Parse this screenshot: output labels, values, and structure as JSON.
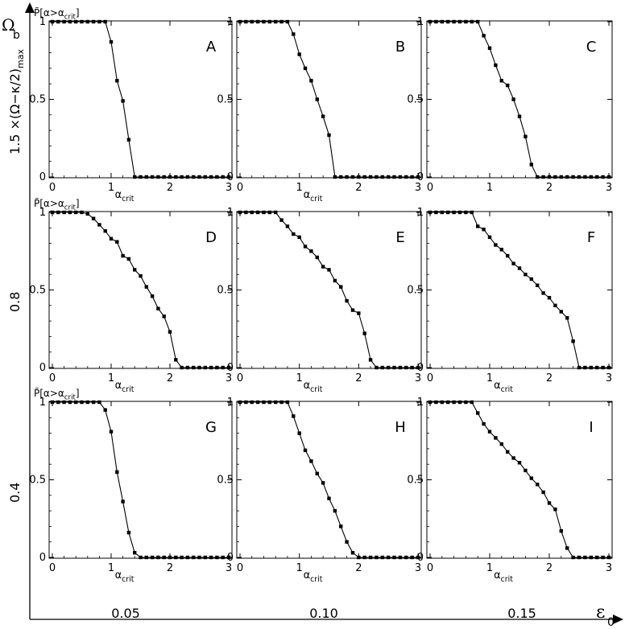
{
  "figure": {
    "y_outer_label": "Ω",
    "y_outer_sub": "b",
    "x_outer_label": "ε",
    "x_outer_sub": "0",
    "row_header": "1.5 ×(Ω−κ/2)",
    "row_header_sub": "max",
    "row_labels": [
      "1.5 ×(Ω−κ/2)max",
      "0.8",
      "0.4"
    ],
    "col_labels": [
      "0.05",
      "0.10",
      "0.15"
    ]
  },
  "chart_data": [
    {
      "type": "line",
      "panel": "A",
      "ylabel": "P̃[α>αcrit]",
      "xlabel": "αcrit",
      "xticks": [
        "0",
        "1",
        "2",
        "3"
      ],
      "yticks": [
        "0",
        "0.5",
        "1"
      ],
      "xlim": [
        0,
        3
      ],
      "ylim": [
        0,
        1
      ],
      "x": [
        0,
        0.1,
        0.2,
        0.3,
        0.4,
        0.5,
        0.6,
        0.7,
        0.8,
        0.9,
        1.0,
        1.1,
        1.2,
        1.3,
        1.4,
        1.5,
        1.6,
        1.7,
        1.8,
        1.9,
        2.0,
        2.1,
        2.2,
        2.3,
        2.4,
        2.5,
        2.6,
        2.7,
        2.8,
        2.9,
        3.0
      ],
      "y": [
        1,
        1,
        1,
        1,
        1,
        1,
        1,
        1,
        1,
        1,
        0.87,
        0.62,
        0.49,
        0.24,
        0,
        0,
        0,
        0,
        0,
        0,
        0,
        0,
        0,
        0,
        0,
        0,
        0,
        0,
        0,
        0,
        0
      ]
    },
    {
      "type": "line",
      "panel": "B",
      "ylabel": "",
      "xlabel": "αcrit",
      "xticks": [
        "0",
        "1",
        "2",
        "3"
      ],
      "yticks": [
        "0",
        "0.5",
        "1"
      ],
      "xlim": [
        0,
        3
      ],
      "ylim": [
        0,
        1
      ],
      "x": [
        0,
        0.1,
        0.2,
        0.3,
        0.4,
        0.5,
        0.6,
        0.7,
        0.8,
        0.9,
        1.0,
        1.1,
        1.2,
        1.3,
        1.4,
        1.5,
        1.6,
        1.7,
        1.8,
        1.9,
        2.0,
        2.1,
        2.2,
        2.3,
        2.4,
        2.5,
        2.6,
        2.7,
        2.8,
        2.9,
        3.0
      ],
      "y": [
        1,
        1,
        1,
        1,
        1,
        1,
        1,
        1,
        1,
        0.92,
        0.79,
        0.7,
        0.62,
        0.5,
        0.39,
        0.27,
        0,
        0,
        0,
        0,
        0,
        0,
        0,
        0,
        0,
        0,
        0,
        0,
        0,
        0,
        0
      ]
    },
    {
      "type": "line",
      "panel": "C",
      "ylabel": "",
      "xlabel": "",
      "xticks": [
        "0",
        "1",
        "2",
        "3"
      ],
      "yticks": [
        "0",
        "0.5",
        "1"
      ],
      "xlim": [
        0,
        3
      ],
      "ylim": [
        0,
        1
      ],
      "x": [
        0,
        0.1,
        0.2,
        0.3,
        0.4,
        0.5,
        0.6,
        0.7,
        0.8,
        0.9,
        1.0,
        1.1,
        1.2,
        1.3,
        1.4,
        1.5,
        1.6,
        1.7,
        1.8,
        1.9,
        2.0,
        2.1,
        2.2,
        2.3,
        2.4,
        2.5,
        2.6,
        2.7,
        2.8,
        2.9,
        3.0
      ],
      "y": [
        1,
        1,
        1,
        1,
        1,
        1,
        1,
        1,
        1,
        0.91,
        0.83,
        0.72,
        0.62,
        0.59,
        0.5,
        0.39,
        0.26,
        0.08,
        0,
        0,
        0,
        0,
        0,
        0,
        0,
        0,
        0,
        0,
        0,
        0,
        0
      ]
    },
    {
      "type": "line",
      "panel": "D",
      "ylabel": "P̃[α>αcrit]",
      "xlabel": "αcrit",
      "xticks": [
        "0",
        "1",
        "2",
        "3"
      ],
      "yticks": [
        "0",
        "0.5",
        "1"
      ],
      "xlim": [
        0,
        3
      ],
      "ylim": [
        0,
        1
      ],
      "x": [
        0,
        0.1,
        0.2,
        0.3,
        0.4,
        0.5,
        0.6,
        0.7,
        0.8,
        0.9,
        1.0,
        1.1,
        1.2,
        1.3,
        1.4,
        1.5,
        1.6,
        1.7,
        1.8,
        1.9,
        2.0,
        2.1,
        2.2,
        2.3,
        2.4,
        2.5,
        2.6,
        2.7,
        2.8,
        2.9,
        3.0
      ],
      "y": [
        1,
        1,
        1,
        1,
        1,
        1,
        0.99,
        0.96,
        0.92,
        0.88,
        0.83,
        0.81,
        0.72,
        0.7,
        0.63,
        0.59,
        0.52,
        0.46,
        0.38,
        0.33,
        0.23,
        0.05,
        0,
        0,
        0,
        0,
        0,
        0,
        0,
        0,
        0
      ]
    },
    {
      "type": "line",
      "panel": "E",
      "ylabel": "",
      "xlabel": "αcrit",
      "xticks": [
        "0",
        "1",
        "2",
        "3"
      ],
      "yticks": [
        "0",
        "0.5",
        "1"
      ],
      "xlim": [
        0,
        3
      ],
      "ylim": [
        0,
        1
      ],
      "x": [
        0,
        0.1,
        0.2,
        0.3,
        0.4,
        0.5,
        0.6,
        0.7,
        0.8,
        0.9,
        1.0,
        1.1,
        1.2,
        1.3,
        1.4,
        1.5,
        1.6,
        1.7,
        1.8,
        1.9,
        2.0,
        2.1,
        2.2,
        2.3,
        2.4,
        2.5,
        2.6,
        2.7,
        2.8,
        2.9,
        3.0
      ],
      "y": [
        1,
        1,
        1,
        1,
        1,
        1,
        1,
        0.95,
        0.91,
        0.86,
        0.84,
        0.78,
        0.75,
        0.71,
        0.65,
        0.63,
        0.56,
        0.52,
        0.43,
        0.37,
        0.35,
        0.22,
        0.05,
        0,
        0,
        0,
        0,
        0,
        0,
        0,
        0
      ]
    },
    {
      "type": "line",
      "panel": "F",
      "ylabel": "",
      "xlabel": "αcrit",
      "xticks": [
        "0",
        "1",
        "2",
        "3"
      ],
      "yticks": [
        "0",
        "0.5",
        "1"
      ],
      "xlim": [
        0,
        3
      ],
      "ylim": [
        0,
        1
      ],
      "x": [
        0,
        0.1,
        0.2,
        0.3,
        0.4,
        0.5,
        0.6,
        0.7,
        0.8,
        0.9,
        1.0,
        1.1,
        1.2,
        1.3,
        1.4,
        1.5,
        1.6,
        1.7,
        1.8,
        1.9,
        2.0,
        2.1,
        2.2,
        2.3,
        2.4,
        2.5,
        2.6,
        2.7,
        2.8,
        2.9,
        3.0
      ],
      "y": [
        1,
        1,
        1,
        1,
        1,
        1,
        1,
        1,
        0.91,
        0.89,
        0.84,
        0.79,
        0.76,
        0.72,
        0.67,
        0.64,
        0.6,
        0.57,
        0.53,
        0.48,
        0.45,
        0.4,
        0.36,
        0.32,
        0.17,
        0,
        0,
        0,
        0,
        0,
        0
      ]
    },
    {
      "type": "line",
      "panel": "G",
      "ylabel": "P̃[α>αcrit]",
      "xlabel": "αcrit",
      "xticks": [
        "0",
        "1",
        "2",
        "3"
      ],
      "yticks": [
        "0",
        "0.5",
        "1"
      ],
      "xlim": [
        0,
        3
      ],
      "ylim": [
        0,
        1
      ],
      "x": [
        0,
        0.1,
        0.2,
        0.3,
        0.4,
        0.5,
        0.6,
        0.7,
        0.8,
        0.9,
        1.0,
        1.1,
        1.2,
        1.3,
        1.4,
        1.5,
        1.6,
        1.7,
        1.8,
        1.9,
        2.0,
        2.1,
        2.2,
        2.3,
        2.4,
        2.5,
        2.6,
        2.7,
        2.8,
        2.9,
        3.0
      ],
      "y": [
        1,
        1,
        1,
        1,
        1,
        1,
        1,
        1,
        1,
        0.95,
        0.81,
        0.55,
        0.36,
        0.16,
        0.03,
        0,
        0,
        0,
        0,
        0,
        0,
        0,
        0,
        0,
        0,
        0,
        0,
        0,
        0,
        0,
        0
      ]
    },
    {
      "type": "line",
      "panel": "H",
      "ylabel": "",
      "xlabel": "αcrit",
      "xticks": [
        "0",
        "1",
        "2",
        "3"
      ],
      "yticks": [
        "0",
        "0.5",
        "1"
      ],
      "xlim": [
        0,
        3
      ],
      "ylim": [
        0,
        1
      ],
      "x": [
        0,
        0.1,
        0.2,
        0.3,
        0.4,
        0.5,
        0.6,
        0.7,
        0.8,
        0.9,
        1.0,
        1.1,
        1.2,
        1.3,
        1.4,
        1.5,
        1.6,
        1.7,
        1.8,
        1.9,
        2.0,
        2.1,
        2.2,
        2.3,
        2.4,
        2.5,
        2.6,
        2.7,
        2.8,
        2.9,
        3.0
      ],
      "y": [
        1,
        1,
        1,
        1,
        1,
        1,
        1,
        1,
        1,
        0.91,
        0.8,
        0.69,
        0.62,
        0.54,
        0.48,
        0.38,
        0.3,
        0.2,
        0.1,
        0.03,
        0,
        0,
        0,
        0,
        0,
        0,
        0,
        0,
        0,
        0,
        0
      ]
    },
    {
      "type": "line",
      "panel": "I",
      "ylabel": "",
      "xlabel": "αcrit",
      "xticks": [
        "0",
        "1",
        "2",
        "3"
      ],
      "yticks": [
        "0",
        "0.5",
        "1"
      ],
      "xlim": [
        0,
        3
      ],
      "ylim": [
        0,
        1
      ],
      "x": [
        0,
        0.1,
        0.2,
        0.3,
        0.4,
        0.5,
        0.6,
        0.7,
        0.8,
        0.9,
        1.0,
        1.1,
        1.2,
        1.3,
        1.4,
        1.5,
        1.6,
        1.7,
        1.8,
        1.9,
        2.0,
        2.1,
        2.2,
        2.3,
        2.4,
        2.5,
        2.6,
        2.7,
        2.8,
        2.9,
        3.0
      ],
      "y": [
        1,
        1,
        1,
        1,
        1,
        1,
        1,
        1,
        0.93,
        0.86,
        0.81,
        0.77,
        0.73,
        0.68,
        0.64,
        0.61,
        0.56,
        0.51,
        0.47,
        0.42,
        0.35,
        0.31,
        0.17,
        0.06,
        0,
        0,
        0,
        0,
        0,
        0,
        0
      ]
    }
  ]
}
